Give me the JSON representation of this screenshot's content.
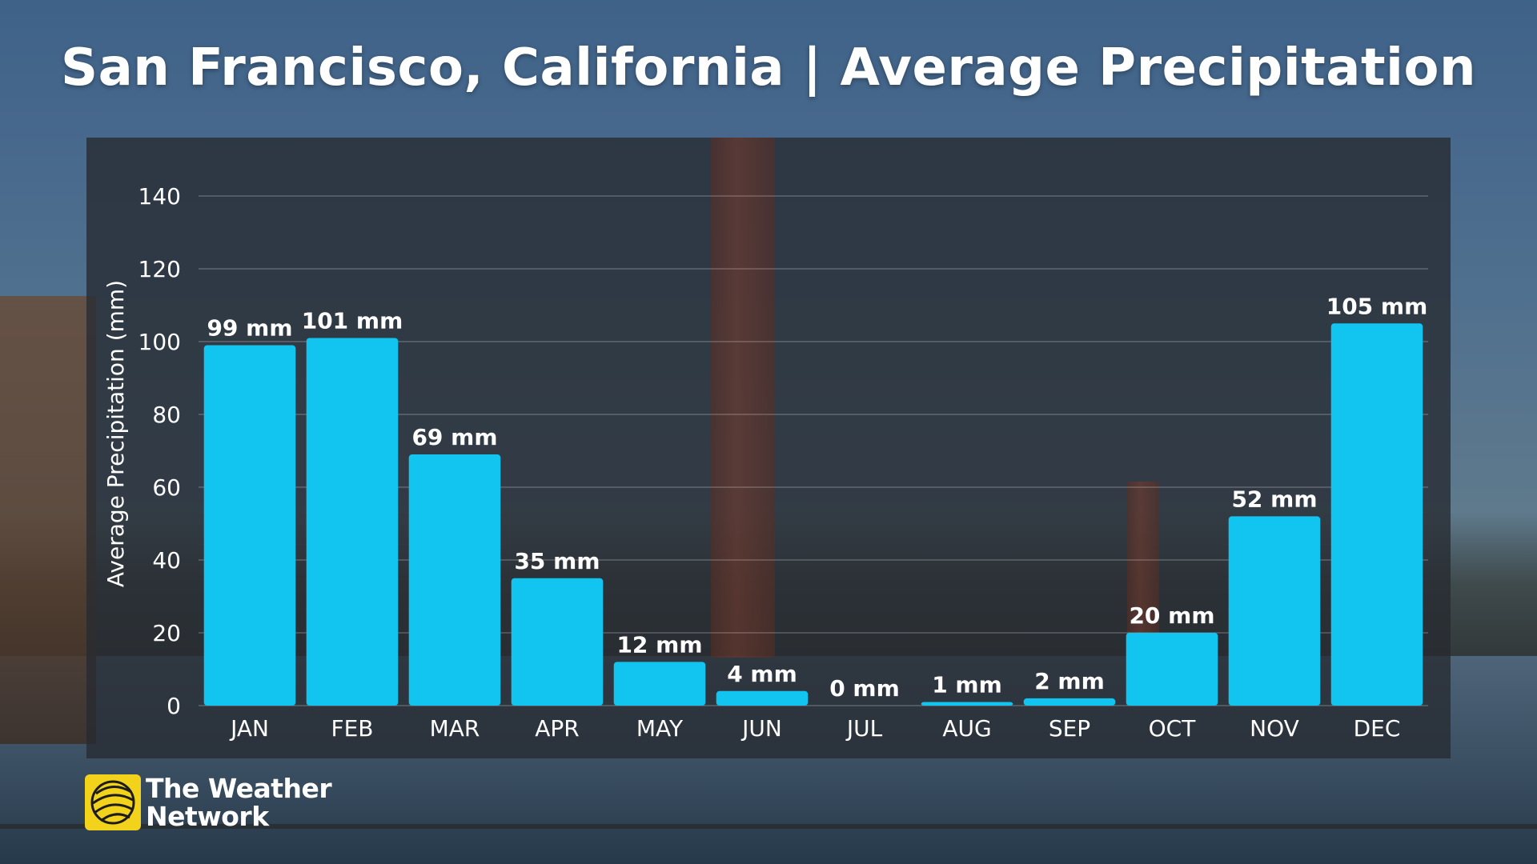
{
  "title": "San Francisco, California | Average Precipitation",
  "brand": {
    "line1": "The Weather",
    "line2": "Network",
    "logo_color": "#f2d21b"
  },
  "chart_data": {
    "type": "bar",
    "title": "San Francisco, California | Average Precipitation",
    "xlabel": "",
    "ylabel": "Average Precipitation (mm)",
    "ylim": [
      0,
      140
    ],
    "yticks": [
      0,
      20,
      40,
      60,
      80,
      100,
      120,
      140
    ],
    "grid": true,
    "bar_color": "#12c4f0",
    "categories": [
      "JAN",
      "FEB",
      "MAR",
      "APR",
      "MAY",
      "JUN",
      "JUL",
      "AUG",
      "SEP",
      "OCT",
      "NOV",
      "DEC"
    ],
    "values": [
      99,
      101,
      69,
      35,
      12,
      4,
      0,
      1,
      2,
      20,
      52,
      105
    ],
    "data_labels": [
      "99 mm",
      "101 mm",
      "69 mm",
      "35 mm",
      "12 mm",
      "4 mm",
      "0 mm",
      "1 mm",
      "2 mm",
      "20 mm",
      "52 mm",
      "105 mm"
    ]
  }
}
